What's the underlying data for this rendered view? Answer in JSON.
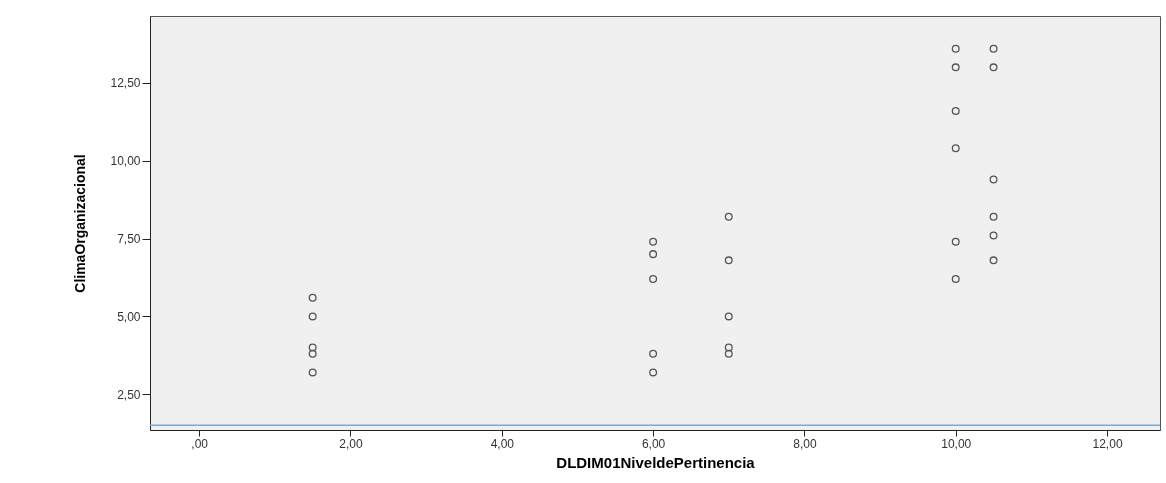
{
  "chart_data": {
    "type": "scatter",
    "xlabel": "DLDIM01NiveldePertinencia",
    "ylabel": "ClimaOrganizacional",
    "x": [
      1.5,
      1.5,
      1.5,
      1.5,
      1.5,
      6,
      6,
      6,
      6,
      6,
      7,
      7,
      7,
      7,
      7,
      10,
      10,
      10,
      10,
      10,
      10,
      10.5,
      10.5,
      10.5,
      10.5,
      10.5,
      10.5
    ],
    "series": [
      {
        "color": "#555555",
        "values": [
          5.6,
          5.0,
          4.0,
          3.8,
          3.2,
          7.4,
          7.0,
          6.2,
          3.8,
          3.2,
          8.2,
          6.8,
          5.0,
          4.0,
          3.8,
          13.6,
          13.0,
          11.6,
          10.4,
          7.4,
          6.2,
          13.6,
          13.0,
          9.4,
          8.2,
          7.6,
          6.8
        ]
      }
    ],
    "xlim": [
      -0.65,
      12.7
    ],
    "ylim": [
      1.35,
      14.65
    ],
    "xticks": [
      {
        "value": 0,
        "label": ",00"
      },
      {
        "value": 2,
        "label": "2,00"
      },
      {
        "value": 4,
        "label": "4,00"
      },
      {
        "value": 6,
        "label": "6,00"
      },
      {
        "value": 8,
        "label": "8,00"
      },
      {
        "value": 10,
        "label": "10,00"
      },
      {
        "value": 12,
        "label": "12,00"
      }
    ],
    "yticks": [
      {
        "value": 2.5,
        "label": "2,50"
      },
      {
        "value": 5,
        "label": "5,00"
      },
      {
        "value": 7.5,
        "label": "7,50"
      },
      {
        "value": 10,
        "label": "10,00"
      },
      {
        "value": 12.5,
        "label": "12,50"
      }
    ],
    "ref_lines": [
      {
        "axis": "y",
        "value": 1.5,
        "color": "#7ba7d9"
      }
    ],
    "grid": false,
    "marker": "circle"
  }
}
